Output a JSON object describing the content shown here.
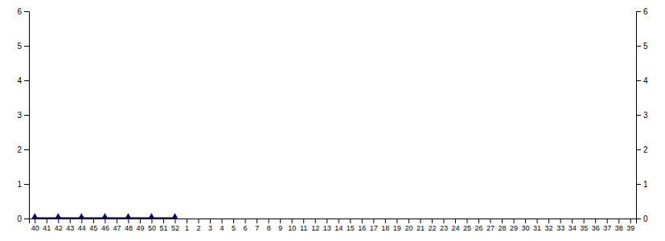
{
  "chart_data": {
    "type": "line",
    "categories": [
      "40",
      "41",
      "42",
      "43",
      "44",
      "45",
      "46",
      "47",
      "48",
      "49",
      "50",
      "51",
      "52",
      "1",
      "2",
      "3",
      "4",
      "5",
      "6",
      "7",
      "8",
      "9",
      "10",
      "11",
      "12",
      "13",
      "14",
      "15",
      "16",
      "17",
      "18",
      "19",
      "20",
      "21",
      "22",
      "23",
      "24",
      "25",
      "26",
      "27",
      "28",
      "29",
      "30",
      "31",
      "32",
      "33",
      "34",
      "35",
      "36",
      "37",
      "38",
      "39"
    ],
    "series": [
      {
        "type": "line",
        "color": "#00008b",
        "values": [
          0.02,
          0.02,
          0.02,
          0.02,
          0.02,
          0.02,
          0.02,
          0.02,
          0.02,
          0.02,
          0.02,
          0.02,
          0.02,
          null,
          null,
          null,
          null,
          null,
          null,
          null,
          null,
          null,
          null,
          null,
          null,
          null,
          null,
          null,
          null,
          null,
          null,
          null,
          null,
          null,
          null,
          null,
          null,
          null,
          null,
          null,
          null,
          null,
          null,
          null,
          null,
          null,
          null,
          null,
          null,
          null,
          null,
          null
        ]
      },
      {
        "type": "scatter",
        "color": "#00008b",
        "marker": "diamond",
        "values": [
          0.02,
          null,
          0.02,
          null,
          0.02,
          null,
          0.02,
          null,
          0.02,
          null,
          0.02,
          null,
          0.02,
          null,
          null,
          null,
          null,
          null,
          null,
          null,
          null,
          null,
          null,
          null,
          null,
          null,
          null,
          null,
          null,
          null,
          null,
          null,
          null,
          null,
          null,
          null,
          null,
          null,
          null,
          null,
          null,
          null,
          null,
          null,
          null,
          null,
          null,
          null,
          null,
          null,
          null,
          null
        ]
      }
    ],
    "ylim": [
      0,
      6
    ],
    "yticks": [
      0,
      1,
      2,
      3,
      4,
      5,
      6
    ],
    "y2lim": [
      0,
      6
    ],
    "y2ticks": [
      0,
      1,
      2,
      3,
      4,
      5,
      6
    ],
    "grid": false
  }
}
